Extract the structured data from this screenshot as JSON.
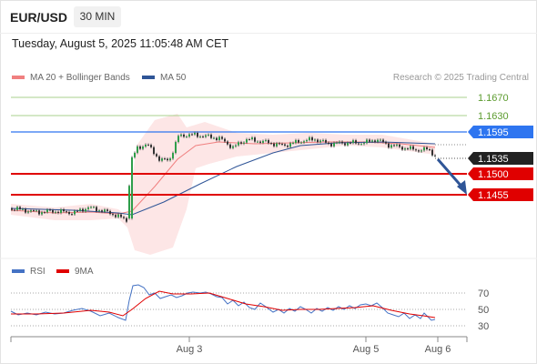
{
  "header": {
    "symbol": "EUR/USD",
    "interval": "30 MIN"
  },
  "timestamp": "Tuesday, August 5, 2025 11:05:48 AM CET",
  "credit": "Research © 2025 Trading Central",
  "legend": {
    "main": [
      {
        "label": "MA 20 + Bollinger Bands",
        "color": "#f08080"
      },
      {
        "label": "MA 50",
        "color": "#2f5597"
      }
    ],
    "rsi": [
      {
        "label": "RSI",
        "color": "#4472c4"
      },
      {
        "label": "9MA",
        "color": "#e00000"
      }
    ]
  },
  "levels": [
    {
      "value": "1.1670",
      "kind": "resistance-weak",
      "color": "#70ad47"
    },
    {
      "value": "1.1630",
      "kind": "resistance-weak",
      "color": "#70ad47"
    },
    {
      "value": "1.1595",
      "kind": "pivot",
      "color": "#2e75f0"
    },
    {
      "value": "1.1535",
      "kind": "last-price",
      "color": "#222222"
    },
    {
      "value": "1.1500",
      "kind": "support",
      "color": "#e00000"
    },
    {
      "value": "1.1455",
      "kind": "support",
      "color": "#e00000"
    }
  ],
  "rsi_levels": [
    "70",
    "50",
    "30"
  ],
  "x_axis": [
    "Aug 3",
    "Aug 5",
    "Aug 6"
  ]
}
